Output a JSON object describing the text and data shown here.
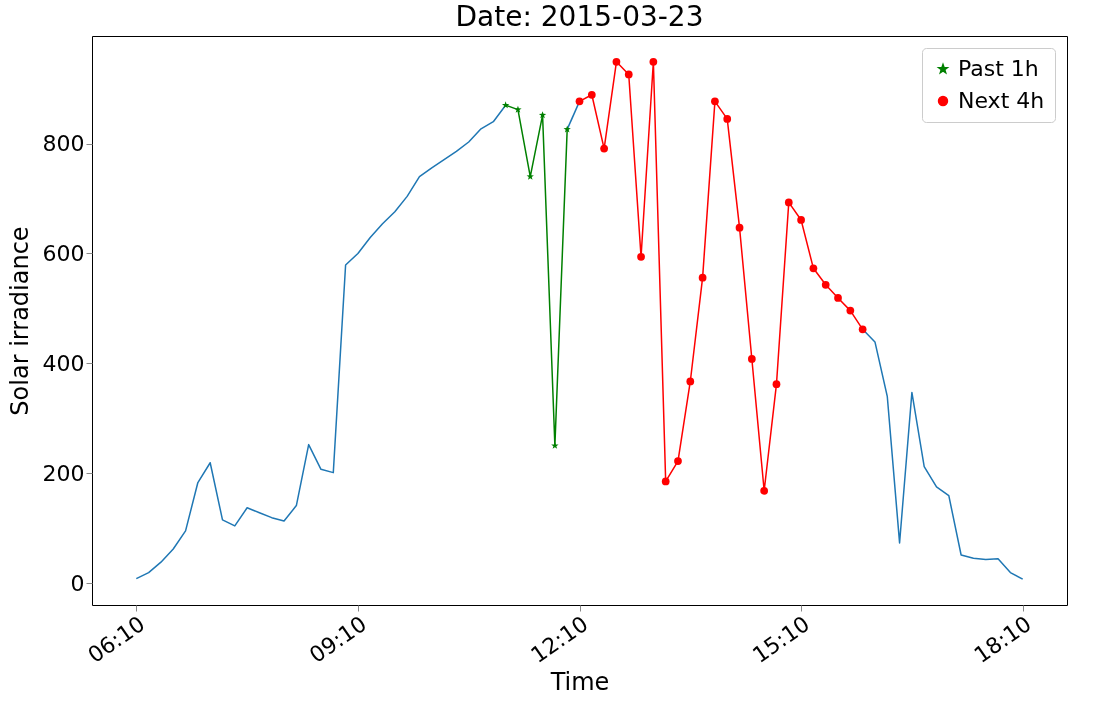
{
  "chart_data": {
    "type": "line",
    "title": "Date: 2015-03-23",
    "xlabel": "Time",
    "ylabel": "Solar irradiance",
    "x": [
      "2015-03-23T06:10",
      "2015-03-23T06:20",
      "2015-03-23T06:30",
      "2015-03-23T06:40",
      "2015-03-23T06:50",
      "2015-03-23T07:00",
      "2015-03-23T07:10",
      "2015-03-23T07:20",
      "2015-03-23T07:30",
      "2015-03-23T07:40",
      "2015-03-23T07:50",
      "2015-03-23T08:00",
      "2015-03-23T08:10",
      "2015-03-23T08:20",
      "2015-03-23T08:30",
      "2015-03-23T08:40",
      "2015-03-23T08:50",
      "2015-03-23T09:00",
      "2015-03-23T09:10",
      "2015-03-23T09:20",
      "2015-03-23T09:30",
      "2015-03-23T09:40",
      "2015-03-23T09:50",
      "2015-03-23T10:00",
      "2015-03-23T10:10",
      "2015-03-23T10:20",
      "2015-03-23T10:30",
      "2015-03-23T10:40",
      "2015-03-23T10:50",
      "2015-03-23T11:00",
      "2015-03-23T11:10",
      "2015-03-23T11:20",
      "2015-03-23T11:30",
      "2015-03-23T11:40",
      "2015-03-23T11:50",
      "2015-03-23T12:00",
      "2015-03-23T12:10",
      "2015-03-23T12:20",
      "2015-03-23T12:30",
      "2015-03-23T12:40",
      "2015-03-23T12:50",
      "2015-03-23T13:00",
      "2015-03-23T13:10",
      "2015-03-23T13:20",
      "2015-03-23T13:30",
      "2015-03-23T13:40",
      "2015-03-23T13:50",
      "2015-03-23T14:00",
      "2015-03-23T14:10",
      "2015-03-23T14:20",
      "2015-03-23T14:30",
      "2015-03-23T14:40",
      "2015-03-23T14:50",
      "2015-03-23T15:00",
      "2015-03-23T15:10",
      "2015-03-23T15:20",
      "2015-03-23T15:30",
      "2015-03-23T15:40",
      "2015-03-23T15:50",
      "2015-03-23T16:00",
      "2015-03-23T16:10",
      "2015-03-23T16:20",
      "2015-03-23T16:30",
      "2015-03-23T16:40",
      "2015-03-23T16:50",
      "2015-03-23T17:00",
      "2015-03-23T17:10",
      "2015-03-23T17:20",
      "2015-03-23T17:30",
      "2015-03-23T17:40",
      "2015-03-23T17:50",
      "2015-03-23T18:00",
      "2015-03-23T18:10"
    ],
    "series": [
      {
        "color": "#1f77b4",
        "marker": "none",
        "values": [
          8,
          19,
          38,
          62,
          95,
          183,
          219,
          115,
          104,
          137,
          128,
          119,
          113,
          141,
          252,
          207,
          201,
          579,
          600,
          629,
          654,
          676,
          704,
          740,
          756,
          771,
          786,
          803,
          827,
          840,
          870,
          null,
          null,
          null,
          null,
          826,
          877,
          null,
          null,
          null,
          null,
          null,
          null,
          null,
          null,
          null,
          null,
          null,
          null,
          null,
          null,
          null,
          null,
          null,
          null,
          null,
          null,
          null,
          null,
          462,
          439,
          340,
          73,
          347,
          212,
          175,
          159,
          51,
          45,
          43,
          44,
          19,
          7
        ]
      },
      {
        "name": "Past 1h",
        "color": "#008000",
        "marker": "star",
        "values": [
          null,
          null,
          null,
          null,
          null,
          null,
          null,
          null,
          null,
          null,
          null,
          null,
          null,
          null,
          null,
          null,
          null,
          null,
          null,
          null,
          null,
          null,
          null,
          null,
          null,
          null,
          null,
          null,
          null,
          null,
          870,
          862,
          740,
          852,
          250,
          826,
          null,
          null,
          null,
          null,
          null,
          null,
          null,
          null,
          null,
          null,
          null,
          null,
          null,
          null,
          null,
          null,
          null,
          null,
          null,
          null,
          null,
          null,
          null,
          null,
          null,
          null,
          null,
          null,
          null,
          null,
          null,
          null,
          null,
          null,
          null,
          null,
          null
        ]
      },
      {
        "name": "Next 4h",
        "color": "#ff0000",
        "marker": "circle",
        "values": [
          null,
          null,
          null,
          null,
          null,
          null,
          null,
          null,
          null,
          null,
          null,
          null,
          null,
          null,
          null,
          null,
          null,
          null,
          null,
          null,
          null,
          null,
          null,
          null,
          null,
          null,
          null,
          null,
          null,
          null,
          null,
          null,
          null,
          null,
          null,
          null,
          877,
          889,
          791,
          949,
          926,
          594,
          949,
          185,
          222,
          367,
          556,
          877,
          845,
          647,
          408,
          168,
          362,
          693,
          661,
          573,
          543,
          519,
          496,
          462,
          null,
          null,
          null,
          null,
          null,
          null,
          null,
          null,
          null,
          null,
          null,
          null,
          null
        ]
      }
    ],
    "xlim": [
      "2015-03-23T05:34",
      "2015-03-23T18:46"
    ],
    "xticks": [
      {
        "value": "2015-03-23T06:10",
        "label": "06:10"
      },
      {
        "value": "2015-03-23T09:10",
        "label": "09:10"
      },
      {
        "value": "2015-03-23T12:10",
        "label": "12:10"
      },
      {
        "value": "2015-03-23T15:10",
        "label": "15:10"
      },
      {
        "value": "2015-03-23T18:10",
        "label": "18:10"
      }
    ],
    "ylim": [
      -40,
      996
    ],
    "yticks": [
      0,
      200,
      400,
      600,
      800
    ],
    "grid": false,
    "legend": "top right"
  }
}
